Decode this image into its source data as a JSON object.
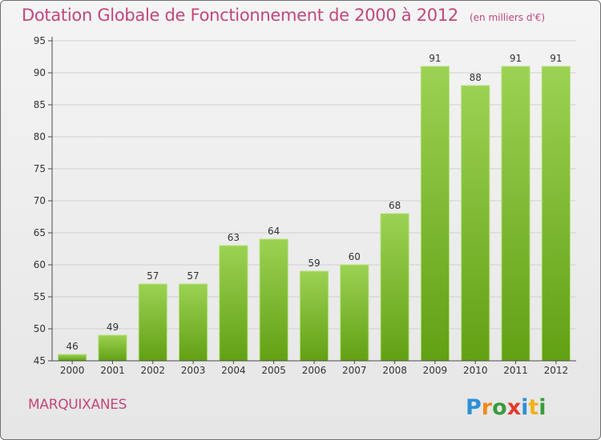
{
  "header": {
    "title": "Dotation Globale de Fonctionnement de 2000 à 2012",
    "unit": "(en milliers d'€)"
  },
  "commune": "MARQUIXANES",
  "logo": {
    "text": "Proxiti"
  },
  "colors": {
    "title": "#c2477c",
    "bar_light": "#9cd253",
    "bar_dark": "#62a014",
    "axis": "#4a4a4a",
    "grid": "#d0d0d0"
  },
  "chart_data": {
    "type": "bar",
    "categories": [
      "2000",
      "2001",
      "2002",
      "2003",
      "2004",
      "2005",
      "2006",
      "2007",
      "2008",
      "2009",
      "2010",
      "2011",
      "2012"
    ],
    "values": [
      46,
      49,
      57,
      57,
      63,
      64,
      59,
      60,
      68,
      91,
      88,
      91,
      91
    ],
    "ylim": [
      45,
      95
    ],
    "yticks": [
      45,
      50,
      55,
      60,
      65,
      70,
      75,
      80,
      85,
      90,
      95
    ],
    "grid": true,
    "data_labels": true
  }
}
